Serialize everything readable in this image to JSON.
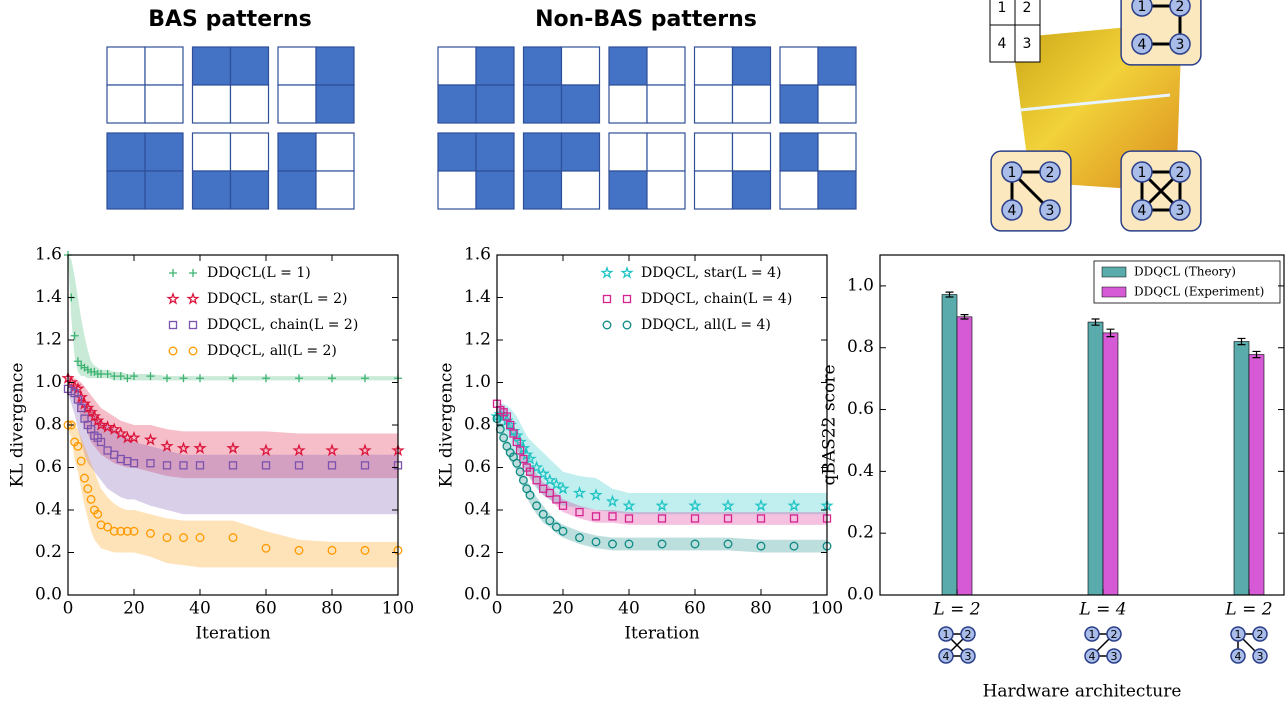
{
  "patterns": {
    "color": "#4472c4",
    "bas": {
      "title": "BAS patterns",
      "grids": [
        [
          0,
          0,
          0,
          0
        ],
        [
          1,
          1,
          0,
          0
        ],
        [
          0,
          1,
          0,
          1
        ],
        [
          1,
          1,
          1,
          1
        ],
        [
          0,
          0,
          1,
          1
        ],
        [
          1,
          0,
          1,
          0
        ]
      ]
    },
    "non_bas": {
      "title": "Non-BAS patterns",
      "grids": [
        [
          0,
          1,
          1,
          1
        ],
        [
          1,
          0,
          1,
          1
        ],
        [
          1,
          0,
          0,
          0
        ],
        [
          0,
          1,
          0,
          0
        ],
        [
          0,
          1,
          1,
          0
        ],
        [
          1,
          1,
          0,
          1
        ],
        [
          1,
          1,
          1,
          0
        ],
        [
          0,
          0,
          1,
          0
        ],
        [
          0,
          0,
          0,
          1
        ],
        [
          1,
          0,
          0,
          1
        ]
      ]
    }
  },
  "diagram": {
    "grid_labels": [
      "1",
      "2",
      "4",
      "3"
    ],
    "node_labels": [
      "1",
      "2",
      "3",
      "4"
    ]
  },
  "chart_data": [
    {
      "type": "line",
      "xlabel": "Iteration",
      "ylabel": "KL divergence",
      "x": [
        0,
        1,
        2,
        3,
        4,
        5,
        6,
        7,
        8,
        9,
        10,
        12,
        14,
        16,
        18,
        20,
        25,
        30,
        35,
        40,
        50,
        60,
        70,
        80,
        90,
        100
      ],
      "xlim": [
        0,
        100
      ],
      "xticks": [
        0,
        20,
        40,
        60,
        80,
        100
      ],
      "ylim": [
        0,
        1.6
      ],
      "yticks": [
        {
          "value": 0,
          "label": "0.0"
        },
        {
          "value": 0.2,
          "label": "0.2"
        },
        {
          "value": 0.4,
          "label": "0.4"
        },
        {
          "value": 0.6,
          "label": "0.6"
        },
        {
          "value": 0.8,
          "label": "0.8"
        },
        {
          "value": 1,
          "label": "1.0"
        },
        {
          "value": 1.2,
          "label": "1.2"
        },
        {
          "value": 1.4,
          "label": "1.4"
        },
        {
          "value": 1.6,
          "label": "1.6"
        }
      ],
      "legend": "upper right",
      "series": [
        {
          "name": "DDQCL(L = 1)",
          "color": "#3cb371",
          "marker": "plus",
          "values": [
            1.6,
            1.4,
            1.22,
            1.1,
            1.08,
            1.07,
            1.06,
            1.05,
            1.05,
            1.04,
            1.04,
            1.04,
            1.03,
            1.03,
            1.02,
            1.03,
            1.03,
            1.02,
            1.02,
            1.02,
            1.02,
            1.02,
            1.02,
            1.02,
            1.02,
            1.02
          ],
          "lower": [
            1.6,
            1.3,
            1.12,
            1.05,
            1.03,
            1.03,
            1.02,
            1.02,
            1.02,
            1.02,
            1.02,
            1.02,
            1.01,
            1.01,
            1.01,
            1.01,
            1.01,
            1.01,
            1.01,
            1.01,
            1.01,
            1.01,
            1.01,
            1.01,
            1.01,
            1.01
          ],
          "upper": [
            1.6,
            1.58,
            1.5,
            1.4,
            1.3,
            1.22,
            1.15,
            1.1,
            1.08,
            1.07,
            1.06,
            1.06,
            1.05,
            1.05,
            1.04,
            1.04,
            1.04,
            1.03,
            1.03,
            1.03,
            1.03,
            1.03,
            1.03,
            1.03,
            1.03,
            1.03
          ]
        },
        {
          "name": "DDQCL, star(L = 2)",
          "color": "#dc143c",
          "marker": "star",
          "values": [
            1.02,
            1.0,
            0.98,
            0.97,
            0.93,
            0.9,
            0.88,
            0.86,
            0.84,
            0.82,
            0.8,
            0.79,
            0.78,
            0.76,
            0.74,
            0.74,
            0.73,
            0.7,
            0.69,
            0.69,
            0.69,
            0.68,
            0.68,
            0.68,
            0.68,
            0.68
          ],
          "lower": [
            1.0,
            0.96,
            0.92,
            0.88,
            0.84,
            0.8,
            0.76,
            0.72,
            0.7,
            0.68,
            0.66,
            0.64,
            0.62,
            0.61,
            0.6,
            0.6,
            0.58,
            0.56,
            0.55,
            0.55,
            0.55,
            0.55,
            0.55,
            0.55,
            0.55,
            0.55
          ],
          "upper": [
            1.04,
            1.03,
            1.02,
            1.01,
            1.0,
            0.98,
            0.96,
            0.94,
            0.92,
            0.9,
            0.88,
            0.86,
            0.84,
            0.82,
            0.81,
            0.8,
            0.8,
            0.78,
            0.77,
            0.77,
            0.77,
            0.77,
            0.76,
            0.76,
            0.76,
            0.76
          ]
        },
        {
          "name": "DDQCL, chain(L = 2)",
          "color": "#7b52ae",
          "marker": "square",
          "values": [
            0.97,
            0.96,
            0.95,
            0.92,
            0.88,
            0.83,
            0.8,
            0.78,
            0.75,
            0.74,
            0.72,
            0.68,
            0.66,
            0.64,
            0.63,
            0.62,
            0.62,
            0.61,
            0.61,
            0.61,
            0.61,
            0.61,
            0.61,
            0.61,
            0.61,
            0.61
          ],
          "lower": [
            0.95,
            0.9,
            0.85,
            0.78,
            0.72,
            0.66,
            0.62,
            0.6,
            0.58,
            0.56,
            0.54,
            0.5,
            0.48,
            0.46,
            0.45,
            0.45,
            0.42,
            0.4,
            0.38,
            0.38,
            0.38,
            0.38,
            0.38,
            0.38,
            0.38,
            0.38
          ],
          "upper": [
            1.0,
            0.99,
            0.98,
            0.96,
            0.94,
            0.92,
            0.9,
            0.88,
            0.86,
            0.84,
            0.82,
            0.8,
            0.78,
            0.76,
            0.74,
            0.72,
            0.7,
            0.68,
            0.66,
            0.66,
            0.66,
            0.66,
            0.66,
            0.66,
            0.66,
            0.66
          ]
        },
        {
          "name": "DDQCL, all(L = 2)",
          "color": "#ff9900",
          "marker": "circle",
          "values": [
            0.8,
            0.8,
            0.72,
            0.7,
            0.63,
            0.55,
            0.5,
            0.45,
            0.4,
            0.38,
            0.33,
            0.32,
            0.3,
            0.3,
            0.3,
            0.3,
            0.29,
            0.27,
            0.27,
            0.27,
            0.27,
            0.22,
            0.21,
            0.21,
            0.21,
            0.21
          ],
          "lower": [
            0.78,
            0.74,
            0.64,
            0.58,
            0.5,
            0.42,
            0.36,
            0.3,
            0.26,
            0.24,
            0.22,
            0.21,
            0.2,
            0.2,
            0.2,
            0.2,
            0.18,
            0.15,
            0.14,
            0.13,
            0.13,
            0.13,
            0.13,
            0.13,
            0.13,
            0.13
          ],
          "upper": [
            0.82,
            0.82,
            0.8,
            0.78,
            0.74,
            0.7,
            0.66,
            0.62,
            0.58,
            0.54,
            0.5,
            0.46,
            0.43,
            0.41,
            0.4,
            0.4,
            0.38,
            0.36,
            0.35,
            0.35,
            0.35,
            0.3,
            0.26,
            0.25,
            0.25,
            0.25
          ]
        }
      ]
    },
    {
      "type": "line",
      "xlabel": "Iteration",
      "ylabel": "KL divergence",
      "x": [
        0,
        1,
        2,
        3,
        4,
        5,
        6,
        7,
        8,
        9,
        10,
        12,
        14,
        16,
        18,
        20,
        25,
        30,
        35,
        40,
        50,
        60,
        70,
        80,
        90,
        100
      ],
      "xlim": [
        0,
        100
      ],
      "xticks": [
        0,
        20,
        40,
        60,
        80,
        100
      ],
      "ylim": [
        0,
        1.6
      ],
      "yticks": [
        {
          "value": 0,
          "label": "0.0"
        },
        {
          "value": 0.2,
          "label": "0.2"
        },
        {
          "value": 0.4,
          "label": "0.4"
        },
        {
          "value": 0.6,
          "label": "0.6"
        },
        {
          "value": 0.8,
          "label": "0.8"
        },
        {
          "value": 1,
          "label": "1.0"
        },
        {
          "value": 1.2,
          "label": "1.2"
        },
        {
          "value": 1.4,
          "label": "1.4"
        },
        {
          "value": 1.6,
          "label": "1.6"
        }
      ],
      "legend": "upper right",
      "series": [
        {
          "name": "DDQCL, star(L = 4)",
          "color": "#1fc4c4",
          "marker": "star",
          "values": [
            0.84,
            0.85,
            0.84,
            0.82,
            0.8,
            0.77,
            0.75,
            0.72,
            0.69,
            0.66,
            0.64,
            0.6,
            0.57,
            0.54,
            0.52,
            0.5,
            0.48,
            0.47,
            0.44,
            0.42,
            0.42,
            0.42,
            0.42,
            0.42,
            0.42,
            0.42
          ],
          "lower": [
            0.8,
            0.8,
            0.78,
            0.75,
            0.72,
            0.69,
            0.66,
            0.63,
            0.6,
            0.57,
            0.55,
            0.5,
            0.47,
            0.45,
            0.43,
            0.42,
            0.41,
            0.4,
            0.39,
            0.38,
            0.38,
            0.38,
            0.38,
            0.38,
            0.38,
            0.38
          ],
          "upper": [
            0.88,
            0.9,
            0.9,
            0.89,
            0.88,
            0.86,
            0.84,
            0.81,
            0.78,
            0.75,
            0.73,
            0.7,
            0.67,
            0.64,
            0.61,
            0.58,
            0.56,
            0.55,
            0.5,
            0.48,
            0.48,
            0.48,
            0.48,
            0.48,
            0.48,
            0.48
          ]
        },
        {
          "name": "DDQCL, chain(L = 4)",
          "color": "#d6248f",
          "marker": "square",
          "values": [
            0.9,
            0.87,
            0.86,
            0.84,
            0.8,
            0.76,
            0.72,
            0.68,
            0.64,
            0.6,
            0.58,
            0.54,
            0.5,
            0.48,
            0.45,
            0.42,
            0.39,
            0.37,
            0.37,
            0.36,
            0.36,
            0.36,
            0.36,
            0.36,
            0.36,
            0.36
          ],
          "lower": [
            0.87,
            0.84,
            0.83,
            0.81,
            0.77,
            0.73,
            0.69,
            0.65,
            0.61,
            0.57,
            0.55,
            0.51,
            0.47,
            0.45,
            0.42,
            0.39,
            0.36,
            0.34,
            0.34,
            0.33,
            0.33,
            0.33,
            0.33,
            0.33,
            0.33,
            0.33
          ],
          "upper": [
            0.93,
            0.9,
            0.89,
            0.87,
            0.83,
            0.79,
            0.75,
            0.71,
            0.67,
            0.63,
            0.61,
            0.57,
            0.53,
            0.51,
            0.48,
            0.45,
            0.42,
            0.4,
            0.4,
            0.39,
            0.39,
            0.39,
            0.39,
            0.39,
            0.39,
            0.39
          ]
        },
        {
          "name": "DDQCL, all(L = 4)",
          "color": "#0e8a84",
          "marker": "circle",
          "values": [
            0.83,
            0.78,
            0.74,
            0.7,
            0.67,
            0.65,
            0.62,
            0.58,
            0.54,
            0.5,
            0.47,
            0.42,
            0.38,
            0.35,
            0.32,
            0.3,
            0.27,
            0.25,
            0.24,
            0.24,
            0.24,
            0.24,
            0.24,
            0.23,
            0.23,
            0.23
          ],
          "lower": [
            0.8,
            0.74,
            0.7,
            0.66,
            0.63,
            0.61,
            0.58,
            0.54,
            0.5,
            0.46,
            0.43,
            0.38,
            0.34,
            0.32,
            0.29,
            0.27,
            0.24,
            0.22,
            0.21,
            0.21,
            0.21,
            0.21,
            0.21,
            0.2,
            0.2,
            0.2
          ],
          "upper": [
            0.86,
            0.82,
            0.78,
            0.74,
            0.71,
            0.69,
            0.66,
            0.62,
            0.58,
            0.54,
            0.51,
            0.46,
            0.42,
            0.38,
            0.35,
            0.33,
            0.3,
            0.28,
            0.27,
            0.27,
            0.27,
            0.27,
            0.27,
            0.26,
            0.26,
            0.26
          ]
        }
      ]
    },
    {
      "type": "bar",
      "xlabel": "Hardware architecture",
      "ylabel": "qBAS22 score",
      "categories": [
        "L = 2",
        "L = 4",
        "L = 2"
      ],
      "ylim": [
        0,
        1.1
      ],
      "yticks": [
        {
          "value": 0,
          "label": "0.0"
        },
        {
          "value": 0.2,
          "label": "0.2"
        },
        {
          "value": 0.4,
          "label": "0.4"
        },
        {
          "value": 0.6,
          "label": "0.6"
        },
        {
          "value": 0.8,
          "label": "0.8"
        },
        {
          "value": 1,
          "label": "1.0"
        }
      ],
      "legend": "upper right",
      "series": [
        {
          "name": "DDQCL (Theory)",
          "color": "#5aabab",
          "values": [
            0.972,
            0.883,
            0.82
          ],
          "errors": [
            0.008,
            0.01,
            0.01
          ]
        },
        {
          "name": "DDQCL (Experiment)",
          "color": "#d65ad6",
          "values": [
            0.9,
            0.848,
            0.778
          ],
          "errors": [
            0.007,
            0.012,
            0.01
          ]
        }
      ]
    }
  ]
}
